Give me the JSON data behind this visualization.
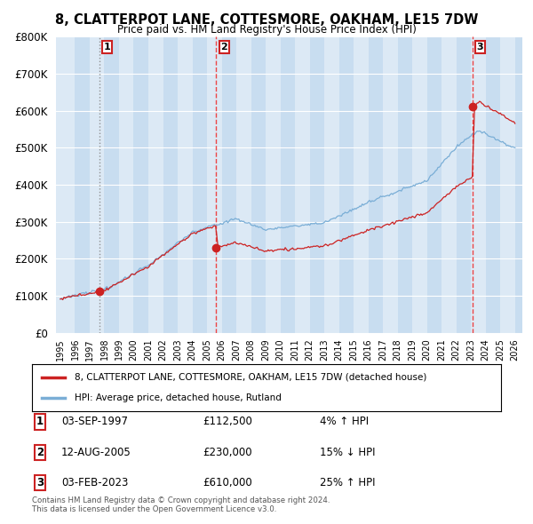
{
  "title": "8, CLATTERPOT LANE, COTTESMORE, OAKHAM, LE15 7DW",
  "subtitle": "Price paid vs. HM Land Registry's House Price Index (HPI)",
  "sales": [
    {
      "label": "1",
      "date_num": 1997.67,
      "price": 112500,
      "pct": "4%",
      "dir": "↑",
      "date_str": "03-SEP-1997",
      "vline_style": "dotted",
      "vline_color": "#888888"
    },
    {
      "label": "2",
      "date_num": 2005.62,
      "price": 230000,
      "pct": "15%",
      "dir": "↓",
      "date_str": "12-AUG-2005",
      "vline_style": "--",
      "vline_color": "#ee3333"
    },
    {
      "label": "3",
      "date_num": 2023.09,
      "price": 610000,
      "pct": "25%",
      "dir": "↑",
      "date_str": "03-FEB-2023",
      "vline_style": "--",
      "vline_color": "#ee3333"
    }
  ],
  "hpi_line_color": "#7aaed6",
  "price_line_color": "#cc2222",
  "marker_color": "#cc2222",
  "background_color": "#ffffff",
  "plot_bg_color": "#dce9f5",
  "stripe_color": "#c8ddf0",
  "grid_color": "#ffffff",
  "ylim": [
    0,
    800000
  ],
  "xlim_start": 1994.7,
  "xlim_end": 2026.5,
  "yticks": [
    0,
    100000,
    200000,
    300000,
    400000,
    500000,
    600000,
    700000,
    800000
  ],
  "xticks": [
    1995,
    1996,
    1997,
    1998,
    1999,
    2000,
    2001,
    2002,
    2003,
    2004,
    2005,
    2006,
    2007,
    2008,
    2009,
    2010,
    2011,
    2012,
    2013,
    2014,
    2015,
    2016,
    2017,
    2018,
    2019,
    2020,
    2021,
    2022,
    2023,
    2024,
    2025,
    2026
  ],
  "legend_address": "8, CLATTERPOT LANE, COTTESMORE, OAKHAM, LE15 7DW (detached house)",
  "legend_hpi": "HPI: Average price, detached house, Rutland",
  "footer1": "Contains HM Land Registry data © Crown copyright and database right 2024.",
  "footer2": "This data is licensed under the Open Government Licence v3.0."
}
